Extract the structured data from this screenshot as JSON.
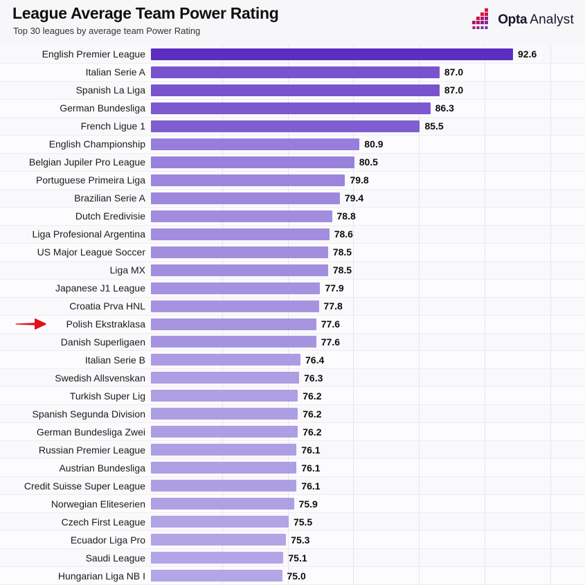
{
  "header": {
    "title": "League Average Team Power Rating",
    "subtitle": "Top 30 leagues by average team Power Rating"
  },
  "brand": {
    "name_bold": "Opta",
    "name_regular": "Analyst"
  },
  "chart_data": {
    "type": "bar",
    "orientation": "horizontal",
    "title": "League Average Team Power Rating",
    "subtitle": "Top 30 leagues by average team Power Rating",
    "categories": [
      "English Premier League",
      "Italian Serie A",
      "Spanish La Liga",
      "German Bundesliga",
      "French Ligue 1",
      "English Championship",
      "Belgian Jupiler Pro League",
      "Portuguese Primeira Liga",
      "Brazilian Serie A",
      "Dutch Eredivisie",
      "Liga Profesional Argentina",
      "US Major League Soccer",
      "Liga MX",
      "Japanese J1 League",
      "Croatia Prva HNL",
      "Polish Ekstraklasa",
      "Danish Superligaen",
      "Italian Serie B",
      "Swedish Allsvenskan",
      "Turkish Super Lig",
      "Spanish Segunda Division",
      "German Bundesliga Zwei",
      "Russian Premier League",
      "Austrian Bundesliga",
      "Credit Suisse Super League",
      "Norwegian Eliteserien",
      "Czech First League",
      "Ecuador Liga Pro",
      "Saudi League",
      "Hungarian Liga NB I"
    ],
    "values": [
      92.6,
      87.0,
      87.0,
      86.3,
      85.5,
      80.9,
      80.5,
      79.8,
      79.4,
      78.8,
      78.6,
      78.5,
      78.5,
      77.9,
      77.8,
      77.6,
      77.6,
      76.4,
      76.3,
      76.2,
      76.2,
      76.2,
      76.1,
      76.1,
      76.1,
      75.9,
      75.5,
      75.3,
      75.1,
      75.0
    ],
    "value_decimals": 1,
    "xlim": [
      65,
      95
    ],
    "gridlines": [
      70,
      75,
      80,
      85,
      90,
      95
    ],
    "grid": "vertical-faint",
    "legend": "none",
    "bar_color_high": "#5b2ec1",
    "bar_color_low": "#b4a6e6",
    "value_domain": [
      75.0,
      92.6
    ],
    "highlight": {
      "category": "Polish Ekstraklasa",
      "index": 15,
      "marker": "red-arrow",
      "color": "#e0131c"
    }
  }
}
